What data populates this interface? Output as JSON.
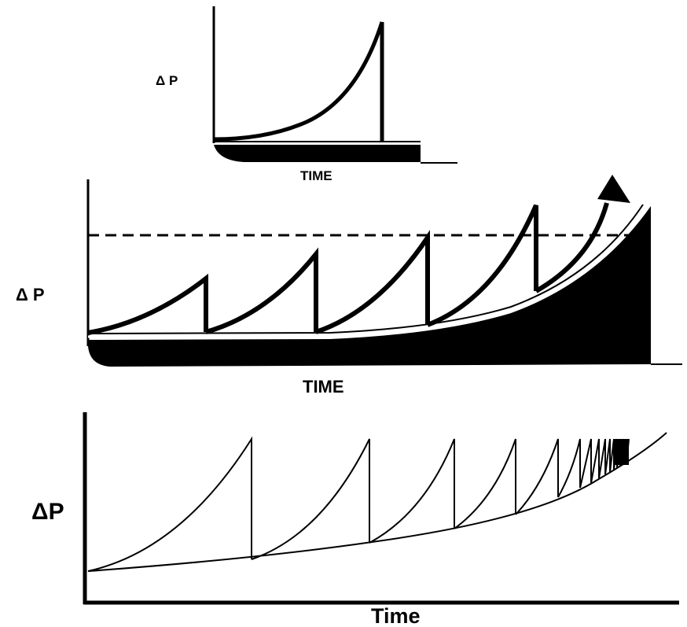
{
  "panels": {
    "top": {
      "y_label": "Δ P",
      "x_label": "TIME"
    },
    "middle": {
      "y_label": "Δ P",
      "x_label": "TIME"
    },
    "bottom": {
      "y_label": "ΔP",
      "x_label": "Time"
    }
  },
  "colors": {
    "ink": "#000000",
    "paper": "#ffffff"
  }
}
